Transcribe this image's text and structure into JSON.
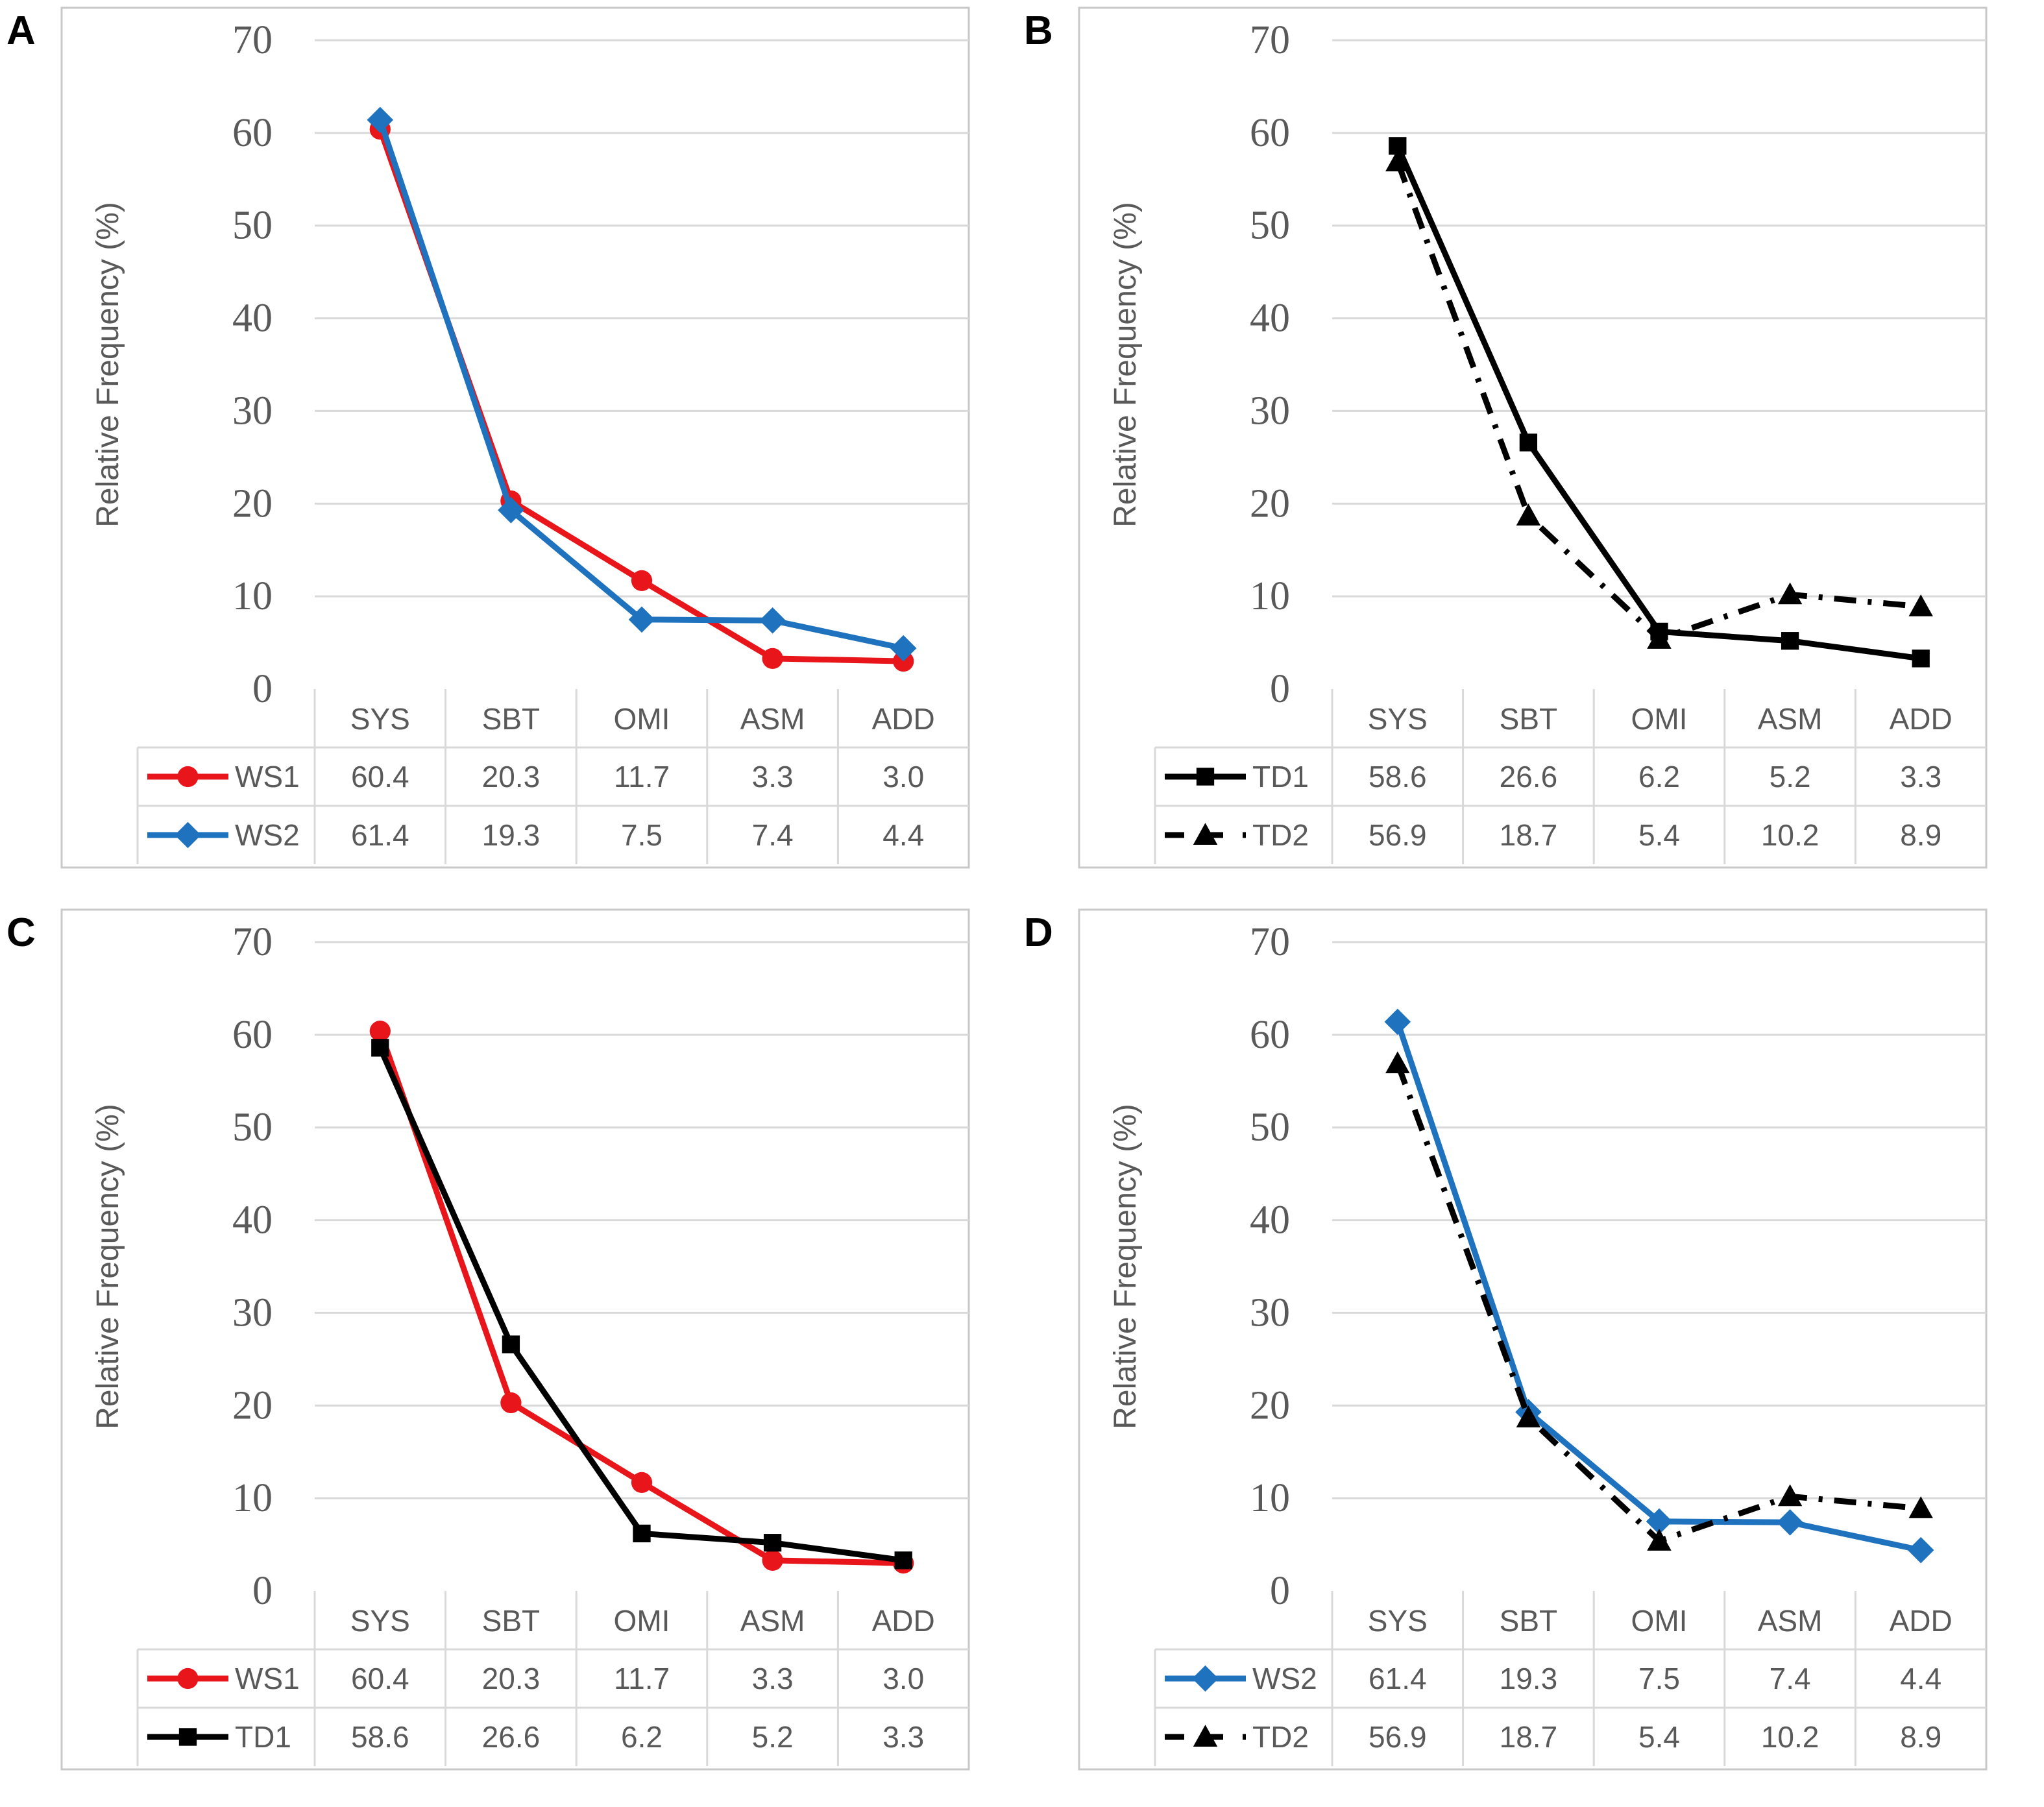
{
  "colors": {
    "WS1": "#e8151b",
    "WS2": "#1f73be",
    "TD1": "#000000",
    "TD2": "#000000",
    "grid": "#d9d9d9",
    "frame": "#c8c8c8",
    "axis_text": "#595959"
  },
  "chart_data": [
    {
      "panel_label": "A",
      "type": "line",
      "ylabel": "Relative Frequency (%)",
      "yticks": [
        "70",
        "60",
        "50",
        "40",
        "30",
        "20",
        "10",
        "0"
      ],
      "ylim": [
        0,
        70
      ],
      "categories": [
        "SYS",
        "SBT",
        "OMI",
        "ASM",
        "ADD"
      ],
      "series": [
        {
          "name": "WS1",
          "marker": "circle",
          "dash": "solid",
          "color_key": "WS1",
          "values": [
            60.4,
            20.3,
            11.7,
            3.3,
            3.0
          ],
          "labels": [
            "60.4",
            "20.3",
            "11.7",
            "3.3",
            "3.0"
          ]
        },
        {
          "name": "WS2",
          "marker": "diamond",
          "dash": "solid",
          "color_key": "WS2",
          "values": [
            61.4,
            19.3,
            7.5,
            7.4,
            4.4
          ],
          "labels": [
            "61.4",
            "19.3",
            "7.5",
            "7.4",
            "4.4"
          ]
        }
      ]
    },
    {
      "panel_label": "B",
      "type": "line",
      "ylabel": "Relative Frequency (%)",
      "yticks": [
        "70",
        "60",
        "50",
        "40",
        "30",
        "20",
        "10",
        "0"
      ],
      "ylim": [
        0,
        70
      ],
      "categories": [
        "SYS",
        "SBT",
        "OMI",
        "ASM",
        "ADD"
      ],
      "series": [
        {
          "name": "TD1",
          "marker": "square",
          "dash": "solid",
          "color_key": "TD1",
          "values": [
            58.6,
            26.6,
            6.2,
            5.2,
            3.3
          ],
          "labels": [
            "58.6",
            "26.6",
            "6.2",
            "5.2",
            "3.3"
          ]
        },
        {
          "name": "TD2",
          "marker": "triangle",
          "dash": "dashdot",
          "color_key": "TD2",
          "values": [
            56.9,
            18.7,
            5.4,
            10.2,
            8.9
          ],
          "labels": [
            "56.9",
            "18.7",
            "5.4",
            "10.2",
            "8.9"
          ]
        }
      ]
    },
    {
      "panel_label": "C",
      "type": "line",
      "ylabel": "Relative Frequency (%)",
      "yticks": [
        "70",
        "60",
        "50",
        "40",
        "30",
        "20",
        "10",
        "0"
      ],
      "ylim": [
        0,
        70
      ],
      "categories": [
        "SYS",
        "SBT",
        "OMI",
        "ASM",
        "ADD"
      ],
      "series": [
        {
          "name": "WS1",
          "marker": "circle",
          "dash": "solid",
          "color_key": "WS1",
          "values": [
            60.4,
            20.3,
            11.7,
            3.3,
            3.0
          ],
          "labels": [
            "60.4",
            "20.3",
            "11.7",
            "3.3",
            "3.0"
          ]
        },
        {
          "name": "TD1",
          "marker": "square",
          "dash": "solid",
          "color_key": "TD1",
          "values": [
            58.6,
            26.6,
            6.2,
            5.2,
            3.3
          ],
          "labels": [
            "58.6",
            "26.6",
            "6.2",
            "5.2",
            "3.3"
          ]
        }
      ]
    },
    {
      "panel_label": "D",
      "type": "line",
      "ylabel": "Relative Frequency (%)",
      "yticks": [
        "70",
        "60",
        "50",
        "40",
        "30",
        "20",
        "10",
        "0"
      ],
      "ylim": [
        0,
        70
      ],
      "categories": [
        "SYS",
        "SBT",
        "OMI",
        "ASM",
        "ADD"
      ],
      "series": [
        {
          "name": "WS2",
          "marker": "diamond",
          "dash": "solid",
          "color_key": "WS2",
          "values": [
            61.4,
            19.3,
            7.5,
            7.4,
            4.4
          ],
          "labels": [
            "61.4",
            "19.3",
            "7.5",
            "7.4",
            "4.4"
          ]
        },
        {
          "name": "TD2",
          "marker": "triangle",
          "dash": "dashdot",
          "color_key": "TD2",
          "values": [
            56.9,
            18.7,
            5.4,
            10.2,
            8.9
          ],
          "labels": [
            "56.9",
            "18.7",
            "5.4",
            "10.2",
            "8.9"
          ]
        }
      ]
    }
  ]
}
